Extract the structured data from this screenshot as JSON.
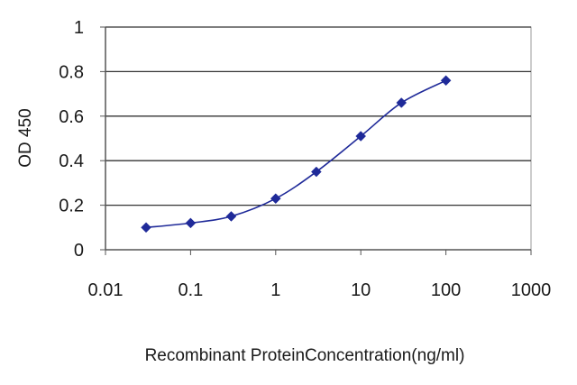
{
  "chart_data": {
    "type": "line",
    "title": "",
    "xlabel": "Recombinant ProteinConcentration(ng/ml)",
    "ylabel": "OD 450",
    "x_scale": "log",
    "xlim": [
      0.01,
      1000
    ],
    "ylim": [
      0,
      1
    ],
    "x_ticks": [
      "0.01",
      "0.1",
      "1",
      "10",
      "100",
      "1000"
    ],
    "y_ticks": [
      "0",
      "0.2",
      "0.4",
      "0.6",
      "0.8",
      "1"
    ],
    "grid": "horizontal",
    "legend": "none",
    "series": [
      {
        "color": "#1f2a99",
        "marker": "diamond",
        "points": [
          {
            "x": 0.03,
            "y": 0.1
          },
          {
            "x": 0.1,
            "y": 0.12
          },
          {
            "x": 0.3,
            "y": 0.15
          },
          {
            "x": 1,
            "y": 0.23
          },
          {
            "x": 3,
            "y": 0.35
          },
          {
            "x": 10,
            "y": 0.51
          },
          {
            "x": 30,
            "y": 0.66
          },
          {
            "x": 100,
            "y": 0.76
          }
        ]
      }
    ]
  }
}
